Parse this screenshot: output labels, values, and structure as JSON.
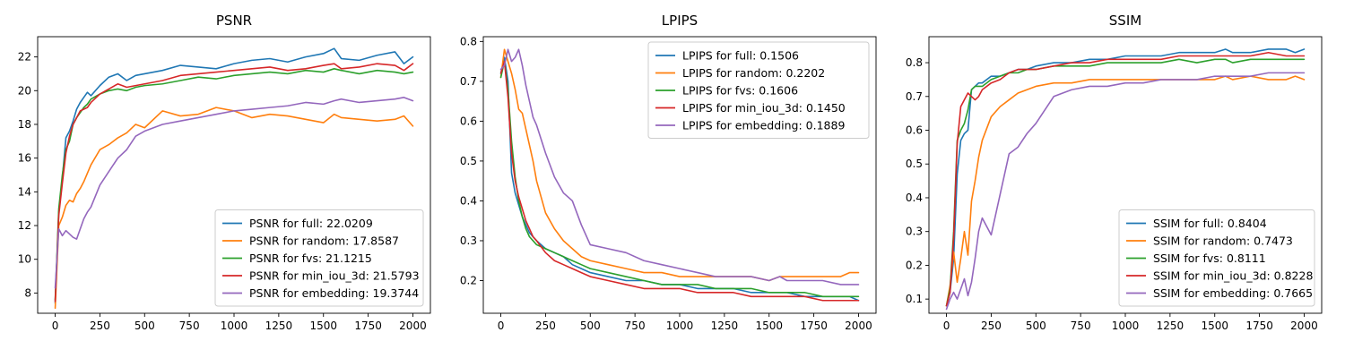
{
  "chart_data": [
    {
      "type": "line",
      "title": "PSNR",
      "xlim": [
        -98,
        2098
      ],
      "ylim": [
        6.8,
        23.2
      ],
      "xticks": [
        0,
        250,
        500,
        750,
        1000,
        1250,
        1500,
        1750,
        2000
      ],
      "yticks": [
        8,
        10,
        12,
        14,
        16,
        18,
        20,
        22
      ],
      "legend_position": "lower-right",
      "x": [
        0,
        20,
        40,
        60,
        80,
        100,
        120,
        140,
        160,
        180,
        200,
        250,
        300,
        350,
        400,
        450,
        500,
        600,
        700,
        800,
        900,
        1000,
        1100,
        1200,
        1300,
        1400,
        1500,
        1560,
        1600,
        1700,
        1800,
        1900,
        1950,
        2000
      ],
      "series": [
        {
          "name": "PSNR for full: 22.0209",
          "color": "#1f77b4",
          "values": [
            7.4,
            12.8,
            14.8,
            17.2,
            17.6,
            18.2,
            18.9,
            19.3,
            19.6,
            19.9,
            19.7,
            20.3,
            20.8,
            21.0,
            20.6,
            20.9,
            21.0,
            21.2,
            21.5,
            21.4,
            21.3,
            21.6,
            21.8,
            21.9,
            21.7,
            22.0,
            22.2,
            22.5,
            21.9,
            21.8,
            22.1,
            22.3,
            21.6,
            22.0
          ]
        },
        {
          "name": "PSNR for random: 17.8587",
          "color": "#ff7f0e",
          "values": [
            7.1,
            12.0,
            12.5,
            13.2,
            13.5,
            13.4,
            13.9,
            14.2,
            14.6,
            15.1,
            15.6,
            16.5,
            16.8,
            17.2,
            17.5,
            18.0,
            17.8,
            18.8,
            18.5,
            18.6,
            19.0,
            18.8,
            18.4,
            18.6,
            18.5,
            18.3,
            18.1,
            18.6,
            18.4,
            18.3,
            18.2,
            18.3,
            18.5,
            17.9
          ]
        },
        {
          "name": "PSNR for fvs: 21.1215",
          "color": "#2ca02c",
          "values": [
            7.6,
            13.0,
            15.0,
            16.5,
            17.0,
            18.0,
            18.4,
            18.7,
            19.0,
            19.2,
            19.5,
            19.8,
            20.0,
            20.1,
            20.0,
            20.2,
            20.3,
            20.4,
            20.6,
            20.8,
            20.7,
            20.9,
            21.0,
            21.1,
            21.0,
            21.2,
            21.1,
            21.3,
            21.2,
            21.0,
            21.2,
            21.1,
            21.0,
            21.1
          ]
        },
        {
          "name": "PSNR for min_iou_3d: 21.5793",
          "color": "#d62728",
          "values": [
            7.5,
            12.6,
            14.5,
            16.3,
            17.3,
            18.0,
            18.4,
            18.8,
            18.9,
            19.0,
            19.3,
            19.8,
            20.1,
            20.4,
            20.2,
            20.3,
            20.4,
            20.6,
            20.9,
            21.0,
            21.1,
            21.2,
            21.3,
            21.4,
            21.2,
            21.3,
            21.5,
            21.6,
            21.3,
            21.4,
            21.6,
            21.5,
            21.2,
            21.6
          ]
        },
        {
          "name": "PSNR for embedding: 19.3744",
          "color": "#9467bd",
          "values": [
            8.3,
            11.8,
            11.4,
            11.7,
            11.5,
            11.3,
            11.2,
            11.8,
            12.4,
            12.8,
            13.1,
            14.4,
            15.2,
            16.0,
            16.5,
            17.3,
            17.6,
            18.0,
            18.2,
            18.4,
            18.6,
            18.8,
            18.9,
            19.0,
            19.1,
            19.3,
            19.2,
            19.4,
            19.5,
            19.3,
            19.4,
            19.5,
            19.6,
            19.4
          ]
        }
      ]
    },
    {
      "type": "line",
      "title": "LPIPS",
      "xlim": [
        -98,
        2098
      ],
      "ylim": [
        0.118,
        0.812
      ],
      "xticks": [
        0,
        250,
        500,
        750,
        1000,
        1250,
        1500,
        1750,
        2000
      ],
      "yticks": [
        0.2,
        0.3,
        0.4,
        0.5,
        0.6,
        0.7,
        0.8
      ],
      "legend_position": "upper-right",
      "x": [
        0,
        20,
        40,
        60,
        80,
        100,
        120,
        140,
        160,
        180,
        200,
        250,
        300,
        350,
        400,
        450,
        500,
        600,
        700,
        800,
        900,
        1000,
        1100,
        1200,
        1300,
        1400,
        1500,
        1560,
        1600,
        1700,
        1800,
        1900,
        1950,
        2000
      ],
      "series": [
        {
          "name": "LPIPS for full: 0.1506",
          "color": "#1f77b4",
          "values": [
            0.72,
            0.76,
            0.7,
            0.47,
            0.42,
            0.39,
            0.36,
            0.34,
            0.32,
            0.31,
            0.3,
            0.28,
            0.27,
            0.26,
            0.24,
            0.23,
            0.22,
            0.21,
            0.2,
            0.2,
            0.19,
            0.19,
            0.18,
            0.18,
            0.18,
            0.17,
            0.17,
            0.17,
            0.17,
            0.16,
            0.16,
            0.16,
            0.16,
            0.15
          ]
        },
        {
          "name": "LPIPS for random: 0.2202",
          "color": "#ff7f0e",
          "values": [
            0.71,
            0.78,
            0.75,
            0.72,
            0.68,
            0.63,
            0.62,
            0.58,
            0.54,
            0.5,
            0.45,
            0.37,
            0.33,
            0.3,
            0.28,
            0.26,
            0.25,
            0.24,
            0.23,
            0.22,
            0.22,
            0.21,
            0.21,
            0.21,
            0.21,
            0.21,
            0.2,
            0.21,
            0.21,
            0.21,
            0.21,
            0.21,
            0.22,
            0.22
          ]
        },
        {
          "name": "LPIPS for fvs: 0.1606",
          "color": "#2ca02c",
          "values": [
            0.71,
            0.75,
            0.68,
            0.55,
            0.46,
            0.4,
            0.36,
            0.33,
            0.31,
            0.3,
            0.29,
            0.28,
            0.27,
            0.26,
            0.25,
            0.24,
            0.23,
            0.22,
            0.21,
            0.2,
            0.19,
            0.19,
            0.19,
            0.18,
            0.18,
            0.18,
            0.17,
            0.17,
            0.17,
            0.17,
            0.16,
            0.16,
            0.16,
            0.16
          ]
        },
        {
          "name": "LPIPS for min_iou_3d: 0.1450",
          "color": "#d62728",
          "values": [
            0.72,
            0.75,
            0.66,
            0.52,
            0.45,
            0.41,
            0.38,
            0.35,
            0.33,
            0.31,
            0.3,
            0.27,
            0.25,
            0.24,
            0.23,
            0.22,
            0.21,
            0.2,
            0.19,
            0.18,
            0.18,
            0.18,
            0.17,
            0.17,
            0.17,
            0.16,
            0.16,
            0.16,
            0.16,
            0.16,
            0.15,
            0.15,
            0.15,
            0.15
          ]
        },
        {
          "name": "LPIPS for embedding: 0.1889",
          "color": "#9467bd",
          "values": [
            0.73,
            0.74,
            0.78,
            0.75,
            0.76,
            0.78,
            0.74,
            0.69,
            0.65,
            0.61,
            0.59,
            0.52,
            0.46,
            0.42,
            0.4,
            0.34,
            0.29,
            0.28,
            0.27,
            0.25,
            0.24,
            0.23,
            0.22,
            0.21,
            0.21,
            0.21,
            0.2,
            0.21,
            0.2,
            0.2,
            0.2,
            0.19,
            0.19,
            0.19
          ]
        }
      ]
    },
    {
      "type": "line",
      "title": "SSIM",
      "xlim": [
        -98,
        2098
      ],
      "ylim": [
        0.058,
        0.877
      ],
      "xticks": [
        0,
        250,
        500,
        750,
        1000,
        1250,
        1500,
        1750,
        2000
      ],
      "yticks": [
        0.1,
        0.2,
        0.3,
        0.4,
        0.5,
        0.6,
        0.7,
        0.8
      ],
      "legend_position": "lower-right",
      "x": [
        0,
        20,
        40,
        60,
        80,
        100,
        120,
        140,
        160,
        180,
        200,
        250,
        300,
        350,
        400,
        450,
        500,
        600,
        700,
        800,
        900,
        1000,
        1100,
        1200,
        1300,
        1400,
        1500,
        1560,
        1600,
        1700,
        1800,
        1900,
        1950,
        2000
      ],
      "series": [
        {
          "name": "SSIM for full: 0.8404",
          "color": "#1f77b4",
          "values": [
            0.08,
            0.12,
            0.22,
            0.47,
            0.57,
            0.59,
            0.6,
            0.72,
            0.73,
            0.74,
            0.74,
            0.76,
            0.76,
            0.77,
            0.78,
            0.78,
            0.79,
            0.8,
            0.8,
            0.81,
            0.81,
            0.82,
            0.82,
            0.82,
            0.83,
            0.83,
            0.83,
            0.84,
            0.83,
            0.83,
            0.84,
            0.84,
            0.83,
            0.84
          ]
        },
        {
          "name": "SSIM for random: 0.7473",
          "color": "#ff7f0e",
          "values": [
            0.08,
            0.14,
            0.24,
            0.15,
            0.22,
            0.3,
            0.23,
            0.39,
            0.45,
            0.52,
            0.57,
            0.64,
            0.67,
            0.69,
            0.71,
            0.72,
            0.73,
            0.74,
            0.74,
            0.75,
            0.75,
            0.75,
            0.75,
            0.75,
            0.75,
            0.75,
            0.75,
            0.76,
            0.75,
            0.76,
            0.75,
            0.75,
            0.76,
            0.75
          ]
        },
        {
          "name": "SSIM for fvs: 0.8111",
          "color": "#2ca02c",
          "values": [
            0.08,
            0.13,
            0.3,
            0.57,
            0.6,
            0.62,
            0.66,
            0.72,
            0.73,
            0.73,
            0.73,
            0.75,
            0.76,
            0.77,
            0.77,
            0.78,
            0.78,
            0.79,
            0.79,
            0.79,
            0.8,
            0.8,
            0.8,
            0.8,
            0.81,
            0.8,
            0.81,
            0.81,
            0.8,
            0.81,
            0.81,
            0.81,
            0.81,
            0.81
          ]
        },
        {
          "name": "SSIM for min_iou_3d: 0.8228",
          "color": "#d62728",
          "values": [
            0.08,
            0.12,
            0.28,
            0.56,
            0.67,
            0.69,
            0.71,
            0.7,
            0.69,
            0.7,
            0.72,
            0.74,
            0.75,
            0.77,
            0.78,
            0.78,
            0.78,
            0.79,
            0.8,
            0.8,
            0.81,
            0.81,
            0.81,
            0.81,
            0.82,
            0.82,
            0.82,
            0.82,
            0.82,
            0.82,
            0.83,
            0.82,
            0.82,
            0.82
          ]
        },
        {
          "name": "SSIM for embedding: 0.7665",
          "color": "#9467bd",
          "values": [
            0.07,
            0.1,
            0.12,
            0.1,
            0.13,
            0.16,
            0.11,
            0.15,
            0.22,
            0.3,
            0.34,
            0.29,
            0.41,
            0.53,
            0.55,
            0.59,
            0.62,
            0.7,
            0.72,
            0.73,
            0.73,
            0.74,
            0.74,
            0.75,
            0.75,
            0.75,
            0.76,
            0.76,
            0.76,
            0.76,
            0.77,
            0.77,
            0.77,
            0.77
          ]
        }
      ]
    }
  ]
}
